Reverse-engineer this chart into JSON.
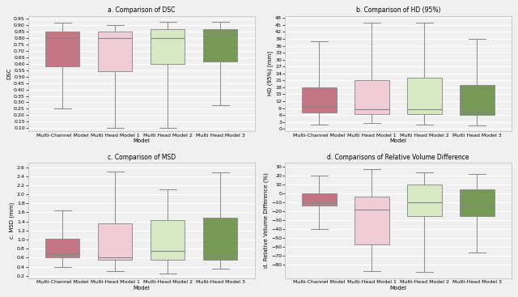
{
  "title_a": "a. Comparison of DSC",
  "title_b": "b. Comparison of HD (95%)",
  "title_c": "c. Comparison of MSD",
  "title_d": "d. Comparisons of Relative Volume Difference",
  "models_ab": [
    "Multi-Channel Model",
    "Multi Head Model 1",
    "Multi Head Model 2",
    "Multi Head Model 3"
  ],
  "models_cd": [
    "Multi-Channel Model",
    "Multi-Head Model 1",
    "Multi-Head Model 2",
    "Multi-Head Model 3"
  ],
  "xlabel": "Model",
  "ylabel_a": "DSC",
  "ylabel_b": "HD (95%) [mm]",
  "ylabel_c": "c. MSD (mm)",
  "ylabel_d": "d. Relative Volume Difference (%)",
  "face_colors": [
    "#c06878",
    "#f0c8d4",
    "#d4e8c0",
    "#6b8f47"
  ],
  "dsc": {
    "whislo": [
      0.25,
      0.1,
      0.1,
      0.28
    ],
    "q1": [
      0.58,
      0.54,
      0.6,
      0.62
    ],
    "med": [
      0.8,
      0.8,
      0.8,
      0.83
    ],
    "q3": [
      0.85,
      0.85,
      0.87,
      0.87
    ],
    "whishi": [
      0.92,
      0.9,
      0.93,
      0.93
    ],
    "ylim": [
      0.075,
      0.975
    ],
    "yticks": [
      0.1,
      0.15,
      0.2,
      0.25,
      0.3,
      0.35,
      0.4,
      0.45,
      0.5,
      0.55,
      0.6,
      0.65,
      0.7,
      0.75,
      0.8,
      0.85,
      0.9,
      0.95
    ]
  },
  "hd": {
    "whislo": [
      2.0,
      2.5,
      2.0,
      1.5
    ],
    "q1": [
      7.0,
      6.5,
      6.5,
      6.0
    ],
    "med": [
      10.0,
      8.5,
      8.5,
      7.5
    ],
    "q3": [
      18.0,
      21.0,
      22.0,
      19.0
    ],
    "whishi": [
      38.0,
      46.0,
      46.0,
      39.0
    ],
    "ylim": [
      -1,
      49
    ],
    "yticks": [
      0,
      3,
      6,
      9,
      12,
      15,
      18,
      21,
      24,
      27,
      30,
      33,
      36,
      39,
      42,
      45,
      48
    ]
  },
  "msd": {
    "whislo": [
      0.4,
      0.3,
      0.25,
      0.35
    ],
    "q1": [
      0.6,
      0.55,
      0.55,
      0.55
    ],
    "med": [
      0.68,
      0.6,
      0.75,
      0.65
    ],
    "q3": [
      1.02,
      1.35,
      1.42,
      1.48
    ],
    "whishi": [
      1.65,
      2.5,
      2.1,
      2.48
    ],
    "ylim": [
      0.15,
      2.7
    ],
    "yticks": [
      0.2,
      0.4,
      0.6,
      0.8,
      1.0,
      1.2,
      1.4,
      1.6,
      1.8,
      2.0,
      2.2,
      2.4,
      2.6
    ]
  },
  "rvd": {
    "whislo": [
      -40,
      -87,
      -88,
      -66
    ],
    "q1": [
      -13,
      -57,
      -25,
      -25
    ],
    "med": [
      -10,
      -18,
      -10,
      -13
    ],
    "q3": [
      0,
      -3,
      10,
      5
    ],
    "whishi": [
      20,
      28,
      24,
      22
    ],
    "ylim": [
      -95,
      35
    ],
    "yticks": [
      -80,
      -70,
      -60,
      -50,
      -40,
      -30,
      -20,
      -10,
      0,
      10,
      20,
      30
    ]
  },
  "bg_color": "#f0f0f0",
  "grid_color": "#ffffff",
  "box_edge_color": "#888888",
  "median_color": "#888888",
  "whisker_color": "#888888",
  "cap_color": "#888888",
  "title_fontsize": 5.5,
  "label_fontsize": 5.0,
  "tick_fontsize": 4.5,
  "xtick_fontsize": 4.2
}
